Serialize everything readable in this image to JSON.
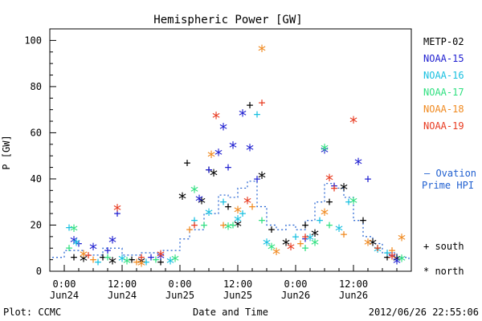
{
  "chart_data": {
    "type": "scatter",
    "title": "Hemispheric Power [GW]",
    "xlabel": "Date and Time",
    "ylabel": "P [GW]",
    "xlim": [
      "2012-06-23T21:00",
      "2012-06-27T00:00"
    ],
    "ylim": [
      0,
      105
    ],
    "yticks": [
      0,
      20,
      40,
      60,
      80,
      100
    ],
    "xticks": [
      {
        "t": "2012-06-24T00:00",
        "time": "0:00",
        "date": "Jun24"
      },
      {
        "t": "2012-06-24T12:00",
        "time": "12:00",
        "date": "Jun24"
      },
      {
        "t": "2012-06-25T00:00",
        "time": "0:00",
        "date": "Jun25"
      },
      {
        "t": "2012-06-25T12:00",
        "time": "12:00",
        "date": "Jun25"
      },
      {
        "t": "2012-06-26T00:00",
        "time": "0:00",
        "date": "Jun26"
      },
      {
        "t": "2012-06-26T12:00",
        "time": "12:00",
        "date": "Jun26"
      }
    ],
    "grid": false,
    "legend_position": "right",
    "markers": {
      "south": "+",
      "north": "*"
    },
    "series": [
      {
        "name": "METP-02",
        "color": "#000000",
        "south": [
          [
            "2012-06-24T02:00",
            6
          ],
          [
            "2012-06-24T08:00",
            6
          ],
          [
            "2012-06-24T14:00",
            5
          ],
          [
            "2012-06-24T20:00",
            4
          ],
          [
            "2012-06-25T01:30",
            47
          ],
          [
            "2012-06-25T06:00",
            44
          ],
          [
            "2012-06-25T10:00",
            28
          ],
          [
            "2012-06-25T14:30",
            72
          ],
          [
            "2012-06-25T19:00",
            18
          ],
          [
            "2012-06-26T02:00",
            20
          ],
          [
            "2012-06-26T07:00",
            30
          ],
          [
            "2012-06-26T14:00",
            22
          ],
          [
            "2012-06-26T19:00",
            6
          ]
        ],
        "north": [
          [
            "2012-06-24T04:00",
            5
          ],
          [
            "2012-06-24T10:00",
            4
          ],
          [
            "2012-06-24T16:00",
            4
          ],
          [
            "2012-06-25T00:30",
            32
          ],
          [
            "2012-06-25T04:30",
            30
          ],
          [
            "2012-06-25T07:00",
            42
          ],
          [
            "2012-06-25T12:00",
            20
          ],
          [
            "2012-06-25T17:00",
            41
          ],
          [
            "2012-06-25T22:00",
            12
          ],
          [
            "2012-06-26T04:00",
            16
          ],
          [
            "2012-06-26T10:00",
            36
          ],
          [
            "2012-06-26T16:00",
            12
          ],
          [
            "2012-06-26T21:00",
            5
          ]
        ]
      },
      {
        "name": "NOAA-15",
        "color": "#1f1fd0",
        "south": [
          [
            "2012-06-24T03:00",
            12
          ],
          [
            "2012-06-24T09:00",
            9
          ],
          [
            "2012-06-24T11:00",
            25
          ],
          [
            "2012-06-24T18:00",
            6
          ],
          [
            "2012-06-25T06:00",
            44
          ],
          [
            "2012-06-25T10:00",
            45
          ],
          [
            "2012-06-25T16:00",
            40
          ],
          [
            "2012-06-26T02:00",
            14
          ],
          [
            "2012-06-26T08:00",
            37
          ],
          [
            "2012-06-26T15:00",
            40
          ],
          [
            "2012-06-26T20:00",
            7
          ]
        ],
        "north": [
          [
            "2012-06-24T02:00",
            13
          ],
          [
            "2012-06-24T06:00",
            10
          ],
          [
            "2012-06-24T10:00",
            13
          ],
          [
            "2012-06-24T20:00",
            6
          ],
          [
            "2012-06-25T04:00",
            31
          ],
          [
            "2012-06-25T08:00",
            51
          ],
          [
            "2012-06-25T09:00",
            62
          ],
          [
            "2012-06-25T11:00",
            54
          ],
          [
            "2012-06-25T13:00",
            68
          ],
          [
            "2012-06-25T14:30",
            53
          ],
          [
            "2012-06-26T06:00",
            52
          ],
          [
            "2012-06-26T13:00",
            47
          ],
          [
            "2012-06-26T21:00",
            4
          ]
        ]
      },
      {
        "name": "NOAA-16",
        "color": "#18c0e0",
        "south": [
          [
            "2012-06-24T01:00",
            19
          ],
          [
            "2012-06-24T07:00",
            4
          ],
          [
            "2012-06-24T17:00",
            4
          ],
          [
            "2012-06-25T03:00",
            22
          ],
          [
            "2012-06-25T09:00",
            30
          ],
          [
            "2012-06-25T13:00",
            25
          ],
          [
            "2012-06-25T16:00",
            68
          ],
          [
            "2012-06-26T00:00",
            15
          ],
          [
            "2012-06-26T05:00",
            22
          ],
          [
            "2012-06-26T11:00",
            30
          ],
          [
            "2012-06-26T19:00",
            8
          ]
        ],
        "north": [
          [
            "2012-06-24T02:30",
            12
          ],
          [
            "2012-06-24T12:00",
            5
          ],
          [
            "2012-06-24T22:00",
            4
          ],
          [
            "2012-06-25T06:00",
            25
          ],
          [
            "2012-06-25T12:00",
            22
          ],
          [
            "2012-06-25T18:00",
            12
          ],
          [
            "2012-06-26T03:00",
            14
          ],
          [
            "2012-06-26T09:00",
            18
          ],
          [
            "2012-06-26T17:00",
            9
          ]
        ]
      },
      {
        "name": "NOAA-17",
        "color": "#30e080",
        "south": [
          [
            "2012-06-24T01:00",
            10
          ],
          [
            "2012-06-24T09:00",
            6
          ],
          [
            "2012-06-24T19:00",
            5
          ],
          [
            "2012-06-25T05:00",
            20
          ],
          [
            "2012-06-25T11:00",
            20
          ],
          [
            "2012-06-25T17:00",
            22
          ],
          [
            "2012-06-26T02:00",
            10
          ],
          [
            "2012-06-26T07:00",
            20
          ],
          [
            "2012-06-26T17:00",
            10
          ]
        ],
        "north": [
          [
            "2012-06-24T02:00",
            18
          ],
          [
            "2012-06-24T13:00",
            4
          ],
          [
            "2012-06-24T23:00",
            5
          ],
          [
            "2012-06-25T03:00",
            35
          ],
          [
            "2012-06-25T10:00",
            19
          ],
          [
            "2012-06-25T19:00",
            10
          ],
          [
            "2012-06-26T04:00",
            12
          ],
          [
            "2012-06-26T06:00",
            53
          ],
          [
            "2012-06-26T12:00",
            30
          ],
          [
            "2012-06-26T22:00",
            5
          ]
        ]
      },
      {
        "name": "NOAA-18",
        "color": "#f08a20",
        "south": [
          [
            "2012-06-24T06:00",
            5
          ],
          [
            "2012-06-24T15:00",
            4
          ],
          [
            "2012-06-25T02:00",
            18
          ],
          [
            "2012-06-25T09:00",
            20
          ],
          [
            "2012-06-25T15:00",
            28
          ],
          [
            "2012-06-26T01:00",
            12
          ],
          [
            "2012-06-26T10:00",
            16
          ],
          [
            "2012-06-26T20:00",
            9
          ]
        ],
        "north": [
          [
            "2012-06-24T04:00",
            7
          ],
          [
            "2012-06-24T16:00",
            3
          ],
          [
            "2012-06-25T06:30",
            50
          ],
          [
            "2012-06-25T12:00",
            26
          ],
          [
            "2012-06-25T17:00",
            96
          ],
          [
            "2012-06-25T20:00",
            8
          ],
          [
            "2012-06-26T06:00",
            25
          ],
          [
            "2012-06-26T15:00",
            12
          ],
          [
            "2012-06-26T22:00",
            14
          ]
        ]
      },
      {
        "name": "NOAA-19",
        "color": "#e83a20",
        "south": [
          [
            "2012-06-24T05:00",
            7
          ],
          [
            "2012-06-24T16:00",
            6
          ],
          [
            "2012-06-25T03:00",
            20
          ],
          [
            "2012-06-25T17:00",
            73
          ],
          [
            "2012-06-26T02:00",
            15
          ],
          [
            "2012-06-26T08:00",
            36
          ],
          [
            "2012-06-26T17:00",
            10
          ]
        ],
        "north": [
          [
            "2012-06-24T11:00",
            27
          ],
          [
            "2012-06-24T20:00",
            7
          ],
          [
            "2012-06-25T07:30",
            67
          ],
          [
            "2012-06-25T14:00",
            30
          ],
          [
            "2012-06-25T23:00",
            10
          ],
          [
            "2012-06-26T07:00",
            40
          ],
          [
            "2012-06-26T12:00",
            65
          ],
          [
            "2012-06-26T20:00",
            6
          ]
        ]
      }
    ],
    "ovation": {
      "name": "— Ovation Prime HPI",
      "color": "#1f5fd0",
      "points": [
        [
          "2012-06-23T21:30",
          6
        ],
        [
          "2012-06-24T00:00",
          9
        ],
        [
          "2012-06-24T04:00",
          7
        ],
        [
          "2012-06-24T08:00",
          10
        ],
        [
          "2012-06-24T12:00",
          7
        ],
        [
          "2012-06-24T16:00",
          8
        ],
        [
          "2012-06-24T20:00",
          9
        ],
        [
          "2012-06-25T00:00",
          14
        ],
        [
          "2012-06-25T02:00",
          18
        ],
        [
          "2012-06-25T05:00",
          25
        ],
        [
          "2012-06-25T08:00",
          33
        ],
        [
          "2012-06-25T10:00",
          32
        ],
        [
          "2012-06-25T12:00",
          36
        ],
        [
          "2012-06-25T14:00",
          39
        ],
        [
          "2012-06-25T16:00",
          28
        ],
        [
          "2012-06-25T18:00",
          20
        ],
        [
          "2012-06-25T20:00",
          18
        ],
        [
          "2012-06-25T22:00",
          20
        ],
        [
          "2012-06-26T00:00",
          18
        ],
        [
          "2012-06-26T02:00",
          22
        ],
        [
          "2012-06-26T04:00",
          30
        ],
        [
          "2012-06-26T06:00",
          38
        ],
        [
          "2012-06-26T08:00",
          36
        ],
        [
          "2012-06-26T10:00",
          32
        ],
        [
          "2012-06-26T12:00",
          22
        ],
        [
          "2012-06-26T14:00",
          15
        ],
        [
          "2012-06-26T16:00",
          12
        ],
        [
          "2012-06-26T18:00",
          8
        ],
        [
          "2012-06-26T21:00",
          6
        ],
        [
          "2012-06-26T23:30",
          5
        ]
      ]
    }
  },
  "legend_south": "+ south",
  "legend_north": "* north",
  "footer": {
    "plot_credit": "Plot: CCMC",
    "timestamp": "2012/06/26 22:55:06"
  }
}
